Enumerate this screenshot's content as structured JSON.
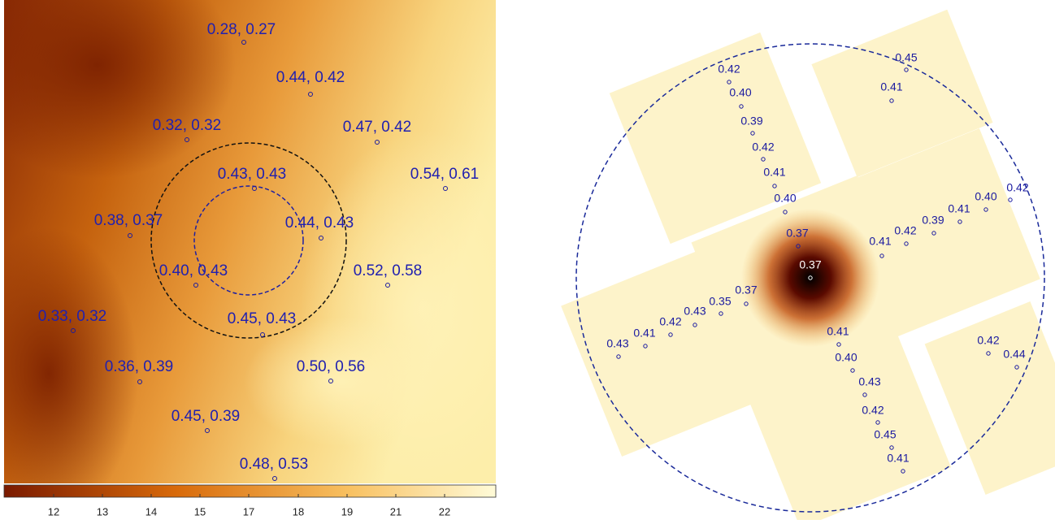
{
  "left_panel": {
    "labels": [
      "0.28, 0.27",
      "0.44, 0.42",
      "0.32, 0.32",
      "0.47, 0.42",
      "0.43, 0.43",
      "0.54, 0.61",
      "0.38, 0.37",
      "0.44, 0.43",
      "0.40, 0.43",
      "0.52, 0.58",
      "0.33, 0.32",
      "0.45, 0.43",
      "0.36, 0.39",
      "0.50, 0.56",
      "0.45, 0.39",
      "0.48, 0.53"
    ]
  },
  "colorbar": {
    "ticks": [
      12,
      13,
      14,
      15,
      17,
      18,
      19,
      21,
      22
    ]
  },
  "right_panel": {
    "labels": [
      "0.45",
      "0.42",
      "0.41",
      "0.40",
      "0.39",
      "0.42",
      "0.41",
      "0.40",
      "0.42",
      "0.40",
      "0.41",
      "0.39",
      "0.42",
      "0.41",
      "0.37",
      "0.37",
      "0.37",
      "0.35",
      "0.43",
      "0.42",
      "0.41",
      "0.43",
      "0.41",
      "0.40",
      "0.42",
      "0.44",
      "0.43",
      "0.42",
      "0.45",
      "0.41"
    ]
  }
}
